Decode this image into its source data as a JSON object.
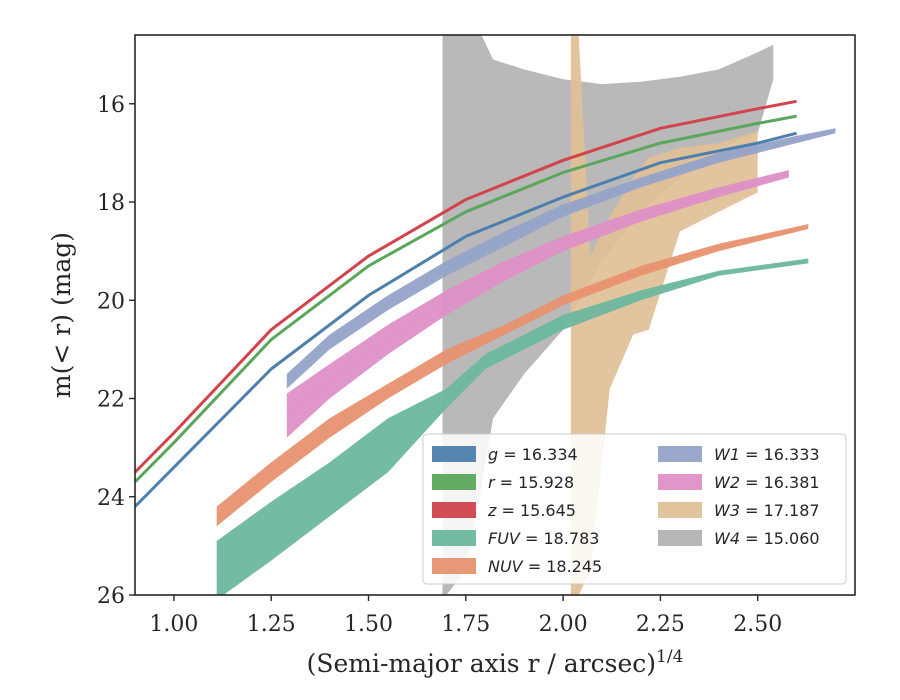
{
  "chart_data": {
    "type": "line",
    "title": "",
    "xlabel": "(Semi-major axis r / arcsec)",
    "xlabel_superscript": "1/4",
    "ylabel": "m(< r) (mag)",
    "xlim": [
      0.9,
      2.75
    ],
    "ylim": [
      26,
      14.6
    ],
    "y_inverted": true,
    "grid": false,
    "legend_position": "bottom-right",
    "x_ticks": [
      "1.00",
      "1.25",
      "1.50",
      "1.75",
      "2.00",
      "2.25",
      "2.50"
    ],
    "y_ticks": [
      "16",
      "18",
      "20",
      "22",
      "24",
      "26"
    ],
    "series": [
      {
        "name": "g = 16.334",
        "var": "g",
        "val": "16.334",
        "color": "#4c7fae",
        "kind": "line",
        "x": [
          0.9,
          1.0,
          1.25,
          1.5,
          1.75,
          2.0,
          2.25,
          2.5,
          2.6
        ],
        "y": [
          24.2,
          23.4,
          21.4,
          19.9,
          18.7,
          17.9,
          17.2,
          16.8,
          16.6
        ]
      },
      {
        "name": "r = 15.928",
        "var": "r",
        "val": "15.928",
        "color": "#5aa65a",
        "kind": "line",
        "x": [
          0.9,
          1.0,
          1.25,
          1.5,
          1.75,
          2.0,
          2.25,
          2.5,
          2.6
        ],
        "y": [
          23.7,
          22.9,
          20.8,
          19.3,
          18.2,
          17.4,
          16.8,
          16.4,
          16.25
        ]
      },
      {
        "name": "z = 15.645",
        "var": "z",
        "val": "15.645",
        "color": "#d1444b",
        "kind": "line",
        "x": [
          0.9,
          1.0,
          1.25,
          1.5,
          1.75,
          2.0,
          2.25,
          2.5,
          2.6
        ],
        "y": [
          23.5,
          22.7,
          20.6,
          19.1,
          17.95,
          17.15,
          16.5,
          16.1,
          15.95
        ]
      },
      {
        "name": "FUV = 18.783",
        "var": "FUV",
        "val": "18.783",
        "color": "#6db79f",
        "kind": "band",
        "x": [
          1.11,
          1.25,
          1.4,
          1.55,
          1.7,
          1.8,
          2.0,
          2.2,
          2.4,
          2.63
        ],
        "y_low": [
          26.1,
          25.3,
          24.4,
          23.5,
          22.2,
          21.4,
          20.6,
          20.0,
          19.5,
          19.25
        ],
        "y_high": [
          24.9,
          24.1,
          23.3,
          22.4,
          21.8,
          21.1,
          20.3,
          19.8,
          19.4,
          19.15
        ]
      },
      {
        "name": "NUV = 18.245",
        "var": "NUV",
        "val": "18.245",
        "color": "#e89270",
        "kind": "band",
        "x": [
          1.11,
          1.25,
          1.4,
          1.55,
          1.7,
          1.85,
          2.0,
          2.2,
          2.4,
          2.63
        ],
        "y_low": [
          24.6,
          23.7,
          22.8,
          22.0,
          21.3,
          20.7,
          20.1,
          19.5,
          19.0,
          18.55
        ],
        "y_high": [
          24.2,
          23.3,
          22.4,
          21.7,
          21.0,
          20.5,
          19.9,
          19.3,
          18.85,
          18.45
        ]
      },
      {
        "name": "W1 = 16.333",
        "var": "W1",
        "val": "16.333",
        "color": "#94a3c8",
        "kind": "band",
        "x": [
          1.29,
          1.4,
          1.55,
          1.7,
          1.85,
          2.0,
          2.2,
          2.4,
          2.6,
          2.7
        ],
        "y_low": [
          21.8,
          21.0,
          20.2,
          19.5,
          18.9,
          18.3,
          17.7,
          17.2,
          16.8,
          16.6
        ],
        "y_high": [
          21.5,
          20.7,
          19.9,
          19.2,
          18.6,
          18.05,
          17.5,
          17.0,
          16.65,
          16.5
        ]
      },
      {
        "name": "W2 = 16.381",
        "var": "W2",
        "val": "16.381",
        "color": "#de90c6",
        "kind": "band",
        "x": [
          1.29,
          1.4,
          1.55,
          1.7,
          1.85,
          2.0,
          2.2,
          2.4,
          2.58
        ],
        "y_low": [
          22.8,
          22.0,
          21.1,
          20.3,
          19.6,
          19.0,
          18.4,
          17.9,
          17.5
        ],
        "y_high": [
          21.9,
          21.3,
          20.5,
          19.8,
          19.2,
          18.7,
          18.15,
          17.7,
          17.35
        ]
      },
      {
        "name": "W3 = 17.187",
        "var": "W3",
        "val": "17.187",
        "color": "#e0c097",
        "kind": "band",
        "x": [
          2.02,
          2.04,
          2.07,
          2.12,
          2.18,
          2.22,
          2.3,
          2.4,
          2.5
        ],
        "y_low": [
          26.0,
          26.0,
          25.5,
          21.8,
          20.7,
          20.6,
          18.6,
          18.2,
          17.8
        ],
        "y_high": [
          14.6,
          14.6,
          19.1,
          18.3,
          17.5,
          17.1,
          16.9,
          16.8,
          16.55
        ]
      },
      {
        "name": "W4 = 15.060",
        "var": "W4",
        "val": "15.060",
        "color": "#b3b3b3",
        "kind": "band",
        "x": [
          1.69,
          1.7,
          1.75,
          1.79,
          1.82,
          1.9,
          2.0,
          2.1,
          2.2,
          2.3,
          2.4,
          2.5,
          2.54
        ],
        "y_low": [
          26.0,
          26.0,
          25.5,
          23.8,
          22.4,
          21.5,
          20.6,
          19.2,
          18.2,
          17.5,
          16.9,
          16.6,
          15.5
        ],
        "y_high": [
          14.6,
          14.6,
          14.6,
          14.6,
          15.1,
          15.3,
          15.5,
          15.6,
          15.55,
          15.45,
          15.3,
          14.95,
          14.8
        ]
      }
    ]
  }
}
